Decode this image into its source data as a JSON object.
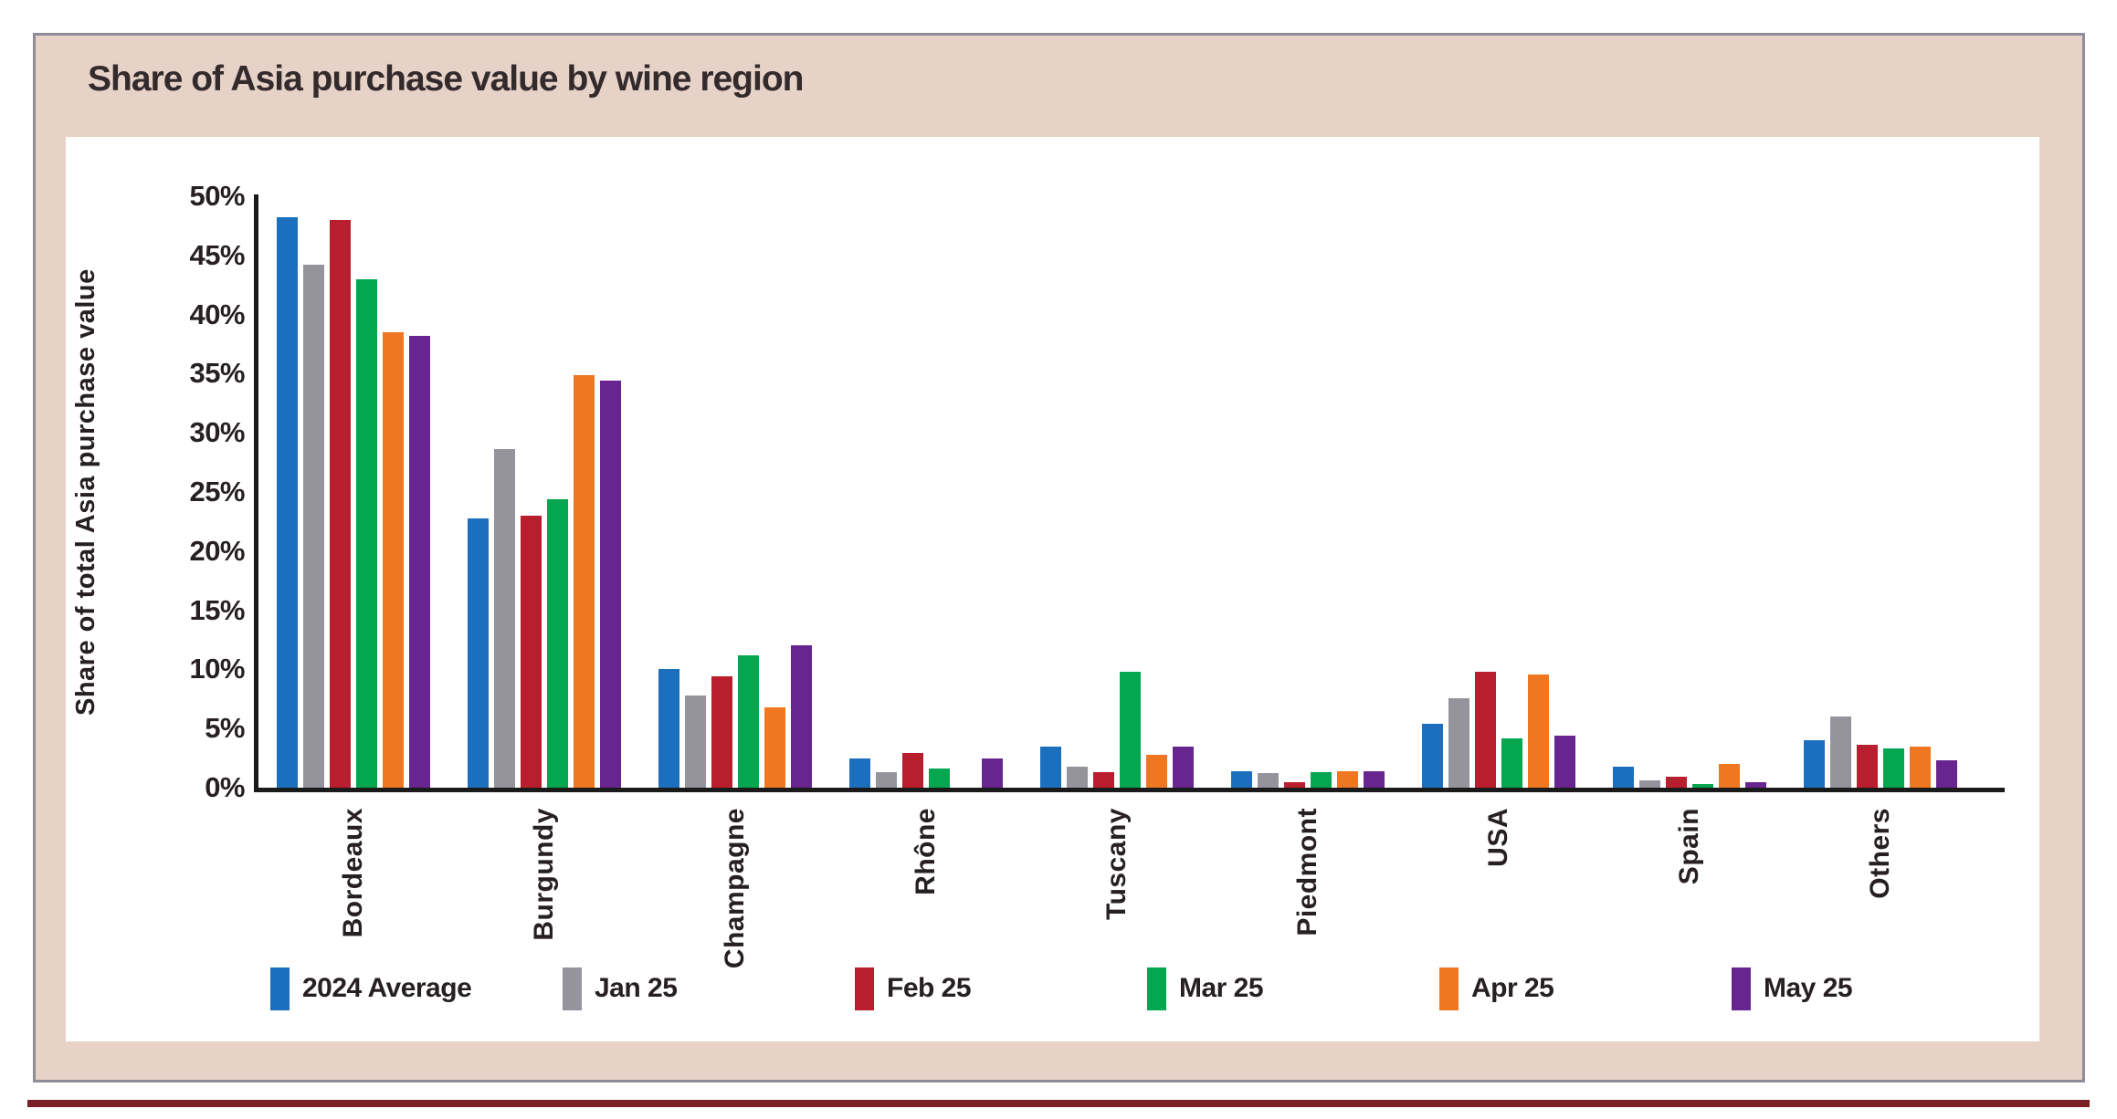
{
  "frame": {
    "title": "Share of Asia purchase value by wine region"
  },
  "colors": {
    "frame_background": "#e7d2c8",
    "frame_border": "#8e8e9a",
    "panel_background": "#ffffff",
    "axis": "#1a1a1a",
    "text": "#262023",
    "title_text": "#332a2c",
    "bottom_rule": "#7a1f27"
  },
  "chart_data": {
    "type": "bar",
    "title": "Share of Asia purchase value by wine region",
    "xlabel": "",
    "ylabel": "Share of total Asia purchase value",
    "ylim": [
      0,
      50
    ],
    "yticks": [
      "50%",
      "45%",
      "40%",
      "35%",
      "30%",
      "25%",
      "20%",
      "15%",
      "10%",
      "5%",
      "0%"
    ],
    "grid": false,
    "legend_position": "bottom",
    "categories": [
      "Bordeaux",
      "Burgundy",
      "Champagne",
      "Rhône",
      "Tuscany",
      "Piedmont",
      "USA",
      "Spain",
      "Others"
    ],
    "series": [
      {
        "name": "2024 Average",
        "color": "#1b6fbd",
        "values": [
          48.2,
          22.8,
          10.0,
          2.5,
          3.5,
          1.4,
          5.4,
          1.8,
          4.0
        ]
      },
      {
        "name": "Jan 25",
        "color": "#95949d",
        "values": [
          44.2,
          28.6,
          7.8,
          1.3,
          1.8,
          1.2,
          7.6,
          0.6,
          6.0
        ]
      },
      {
        "name": "Feb 25",
        "color": "#b81e2d",
        "values": [
          48.0,
          23.0,
          9.4,
          2.9,
          1.3,
          0.5,
          9.8,
          0.9,
          3.6
        ]
      },
      {
        "name": "Mar 25",
        "color": "#04a64f",
        "values": [
          43.0,
          24.4,
          11.2,
          1.6,
          9.8,
          1.3,
          4.2,
          0.3,
          3.3
        ]
      },
      {
        "name": "Apr 25",
        "color": "#ef7721",
        "values": [
          38.5,
          34.9,
          6.8,
          0.0,
          2.8,
          1.4,
          9.6,
          2.0,
          3.5
        ]
      },
      {
        "name": "May 25",
        "color": "#682590",
        "values": [
          38.2,
          34.4,
          12.0,
          2.5,
          3.5,
          1.4,
          4.4,
          0.5,
          2.3
        ]
      }
    ]
  }
}
